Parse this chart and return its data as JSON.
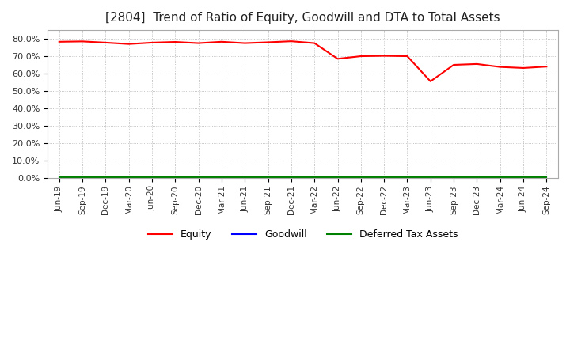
{
  "title": "[2804]  Trend of Ratio of Equity, Goodwill and DTA to Total Assets",
  "title_fontsize": 11,
  "background_color": "#ffffff",
  "plot_bg_color": "#ffffff",
  "grid_color": "#aaaaaa",
  "ylim": [
    0.0,
    0.85
  ],
  "yticks": [
    0.0,
    0.1,
    0.2,
    0.3,
    0.4,
    0.5,
    0.6,
    0.7,
    0.8
  ],
  "yticklabels": [
    "0.0%",
    "10.0%",
    "20.0%",
    "30.0%",
    "40.0%",
    "50.0%",
    "60.0%",
    "70.0%",
    "80.0%"
  ],
  "x_labels": [
    "Jun-19",
    "Sep-19",
    "Dec-19",
    "Mar-20",
    "Jun-20",
    "Sep-20",
    "Dec-20",
    "Mar-21",
    "Jun-21",
    "Sep-21",
    "Dec-21",
    "Mar-22",
    "Jun-22",
    "Sep-22",
    "Dec-22",
    "Mar-23",
    "Jun-23",
    "Sep-23",
    "Dec-23",
    "Mar-24",
    "Jun-24",
    "Sep-24"
  ],
  "equity": [
    0.783,
    0.785,
    0.778,
    0.77,
    0.778,
    0.782,
    0.775,
    0.783,
    0.775,
    0.78,
    0.786,
    0.775,
    0.685,
    0.7,
    0.702,
    0.7,
    0.555,
    0.65,
    0.655,
    0.638,
    0.632,
    0.64
  ],
  "goodwill": [
    0.001,
    0.001,
    0.001,
    0.001,
    0.001,
    0.001,
    0.001,
    0.001,
    0.001,
    0.001,
    0.001,
    0.001,
    0.001,
    0.001,
    0.001,
    0.001,
    0.001,
    0.001,
    0.001,
    0.001,
    0.001,
    0.001
  ],
  "dta": [
    0.005,
    0.005,
    0.005,
    0.005,
    0.005,
    0.005,
    0.005,
    0.005,
    0.005,
    0.005,
    0.005,
    0.005,
    0.005,
    0.005,
    0.005,
    0.005,
    0.005,
    0.005,
    0.005,
    0.005,
    0.005,
    0.005
  ],
  "equity_color": "#ff0000",
  "goodwill_color": "#0000ff",
  "dta_color": "#008000",
  "legend_labels": [
    "Equity",
    "Goodwill",
    "Deferred Tax Assets"
  ]
}
